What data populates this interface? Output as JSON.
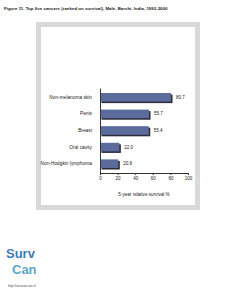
{
  "chart_data": {
    "type": "bar",
    "orientation": "horizontal",
    "title": "Figure 11. Top five cancers (ranked on survival), Male, Barshi, India, 1993-2000",
    "x_label": "5-year relative survival %",
    "categories": [
      "Non-melanoma skin",
      "Penis",
      "Breast",
      "Oral cavity",
      "Non-Hodgkin lymphoma"
    ],
    "values": [
      80.7,
      55.7,
      55.4,
      22.0,
      20.8
    ],
    "value_labels": [
      "80.7",
      "55.7",
      "55.4",
      "22.0",
      "20.8"
    ],
    "data_labels": true,
    "color": "#5a6b9c",
    "xlim": [
      0,
      100
    ],
    "xticks": [
      0,
      20,
      40,
      60,
      80,
      100
    ],
    "grid": false
  },
  "logo": {
    "line1": "Surv",
    "line2": "Can",
    "url": "http://survcan.iarc.fr"
  }
}
